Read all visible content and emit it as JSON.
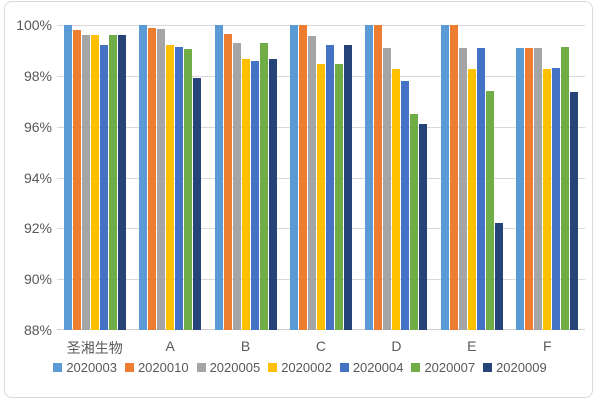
{
  "chart": {
    "background": "#FFFFFF",
    "border_color": "#D9D9D9",
    "gridline_color": "#D9D9D9",
    "axis_line_color": "#D0CECE",
    "text_color": "#595959"
  },
  "chart_data": {
    "type": "bar",
    "title": "",
    "xlabel": "",
    "ylabel": "",
    "grid": true,
    "legend_position": "bottom",
    "ylim": [
      88,
      100
    ],
    "ytick_step": 2,
    "yticks": [
      88,
      90,
      92,
      94,
      96,
      98,
      100
    ],
    "ytick_labels": [
      "88%",
      "90%",
      "92%",
      "94%",
      "96%",
      "98%",
      "100%"
    ],
    "categories": [
      "圣湘生物",
      "A",
      "B",
      "C",
      "D",
      "E",
      "F"
    ],
    "series": [
      {
        "name": "2020003",
        "color": "#5B9BD5",
        "values": [
          100,
          100,
          100,
          100,
          100,
          100,
          99.1
        ]
      },
      {
        "name": "2020010",
        "color": "#ED7D31",
        "values": [
          99.8,
          99.9,
          99.65,
          100,
          100,
          100,
          99.1
        ]
      },
      {
        "name": "2020005",
        "color": "#A5A5A5",
        "values": [
          99.6,
          99.85,
          99.3,
          99.55,
          99.1,
          99.1,
          99.1
        ]
      },
      {
        "name": "2020002",
        "color": "#FFC000",
        "values": [
          99.6,
          99.2,
          98.65,
          98.45,
          98.25,
          98.25,
          98.25
        ]
      },
      {
        "name": "2020004",
        "color": "#4472C4",
        "values": [
          99.2,
          99.15,
          98.6,
          99.2,
          97.8,
          99.1,
          98.3
        ]
      },
      {
        "name": "2020007",
        "color": "#70AD47",
        "values": [
          99.6,
          99.05,
          99.3,
          98.45,
          96.5,
          97.4,
          99.15
        ]
      },
      {
        "name": "2020009",
        "color": "#264478",
        "values": [
          99.6,
          97.9,
          98.65,
          99.2,
          96.1,
          92.2,
          97.35
        ]
      }
    ]
  }
}
